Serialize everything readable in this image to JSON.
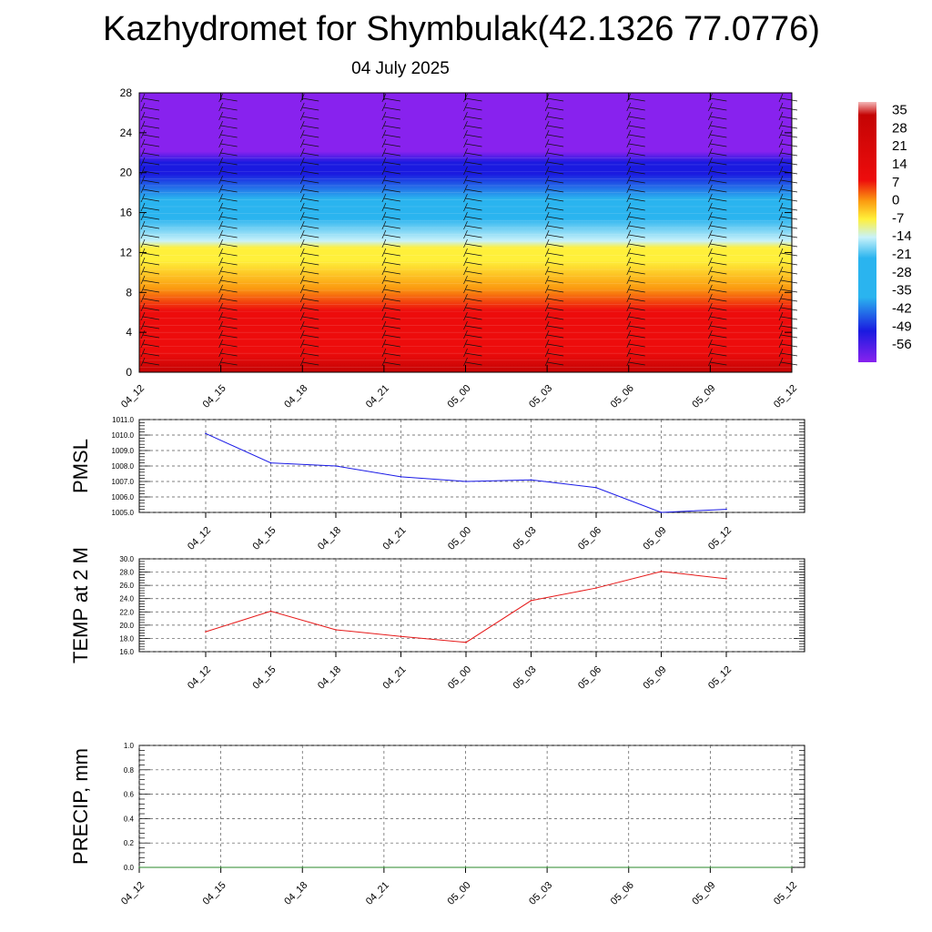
{
  "header": {
    "title": "Kazhydromet for Shymbulak(42.1326 77.0776)",
    "date": "04 July 2025"
  },
  "chart_data": [
    {
      "type": "heatmap",
      "y_ticks": [
        "0",
        "4",
        "8",
        "12",
        "16",
        "20",
        "24",
        "28"
      ],
      "x_ticks": [
        "04_12",
        "04_15",
        "04_18",
        "04_21",
        "05_00",
        "05_03",
        "05_06",
        "05_09",
        "05_12"
      ],
      "ylim": [
        0,
        28
      ],
      "colorbar_labels": [
        "35",
        "28",
        "21",
        "14",
        "7",
        "0",
        "-7",
        "-14",
        "-21",
        "-28",
        "-35",
        "-42",
        "-49",
        "-56"
      ],
      "colorbar_range": [
        -63,
        38
      ],
      "colors": {
        "violet": "#8822ee",
        "blue": "#1a1ae0",
        "cyan": "#2ab4ef",
        "light_cyan": "#c8f2fa",
        "yellow": "#fff03a",
        "orange": "#fb9a10",
        "red": "#ed0c0c",
        "dark_red": "#c40404"
      }
    },
    {
      "type": "line",
      "ylabel": "PMSL",
      "x": [
        "04_12",
        "04_15",
        "04_18",
        "04_21",
        "05_00",
        "05_03",
        "05_06",
        "05_09",
        "05_12"
      ],
      "series": [
        {
          "values": [
            1010.1,
            1008.2,
            1008.0,
            1007.3,
            1007.0,
            1007.1,
            1006.6,
            1005.0,
            1005.2
          ],
          "color": "#1a1ae6"
        }
      ],
      "y_ticks": [
        "1005.0",
        "1006.0",
        "1007.0",
        "1008.0",
        "1009.0",
        "1010.0",
        "1011.0"
      ],
      "ylim": [
        1005.0,
        1011.0
      ],
      "grid": true
    },
    {
      "type": "line",
      "ylabel": "TEMP at 2 M",
      "x": [
        "04_12",
        "04_15",
        "04_18",
        "04_21",
        "05_00",
        "05_03",
        "05_06",
        "05_09",
        "05_12"
      ],
      "series": [
        {
          "values": [
            19.0,
            22.1,
            19.3,
            18.3,
            17.4,
            23.7,
            25.6,
            28.1,
            27.0
          ],
          "color": "#e61a1a"
        }
      ],
      "y_ticks": [
        "16.0",
        "18.0",
        "20.0",
        "22.0",
        "24.0",
        "26.0",
        "28.0",
        "30.0"
      ],
      "ylim": [
        16.0,
        30.0
      ],
      "grid": true
    },
    {
      "type": "line",
      "ylabel": "PRECIP, mm",
      "x": [
        "04_12",
        "04_15",
        "04_18",
        "04_21",
        "05_00",
        "05_03",
        "05_06",
        "05_09",
        "05_12"
      ],
      "series": [
        {
          "values": [
            0,
            0,
            0,
            0,
            0,
            0,
            0,
            0,
            0
          ],
          "color": "#2a8a2a"
        }
      ],
      "y_ticks": [
        "0.0",
        "0.2",
        "0.4",
        "0.6",
        "0.8",
        "1.0"
      ],
      "ylim": [
        0,
        1.0
      ],
      "grid": true
    }
  ]
}
